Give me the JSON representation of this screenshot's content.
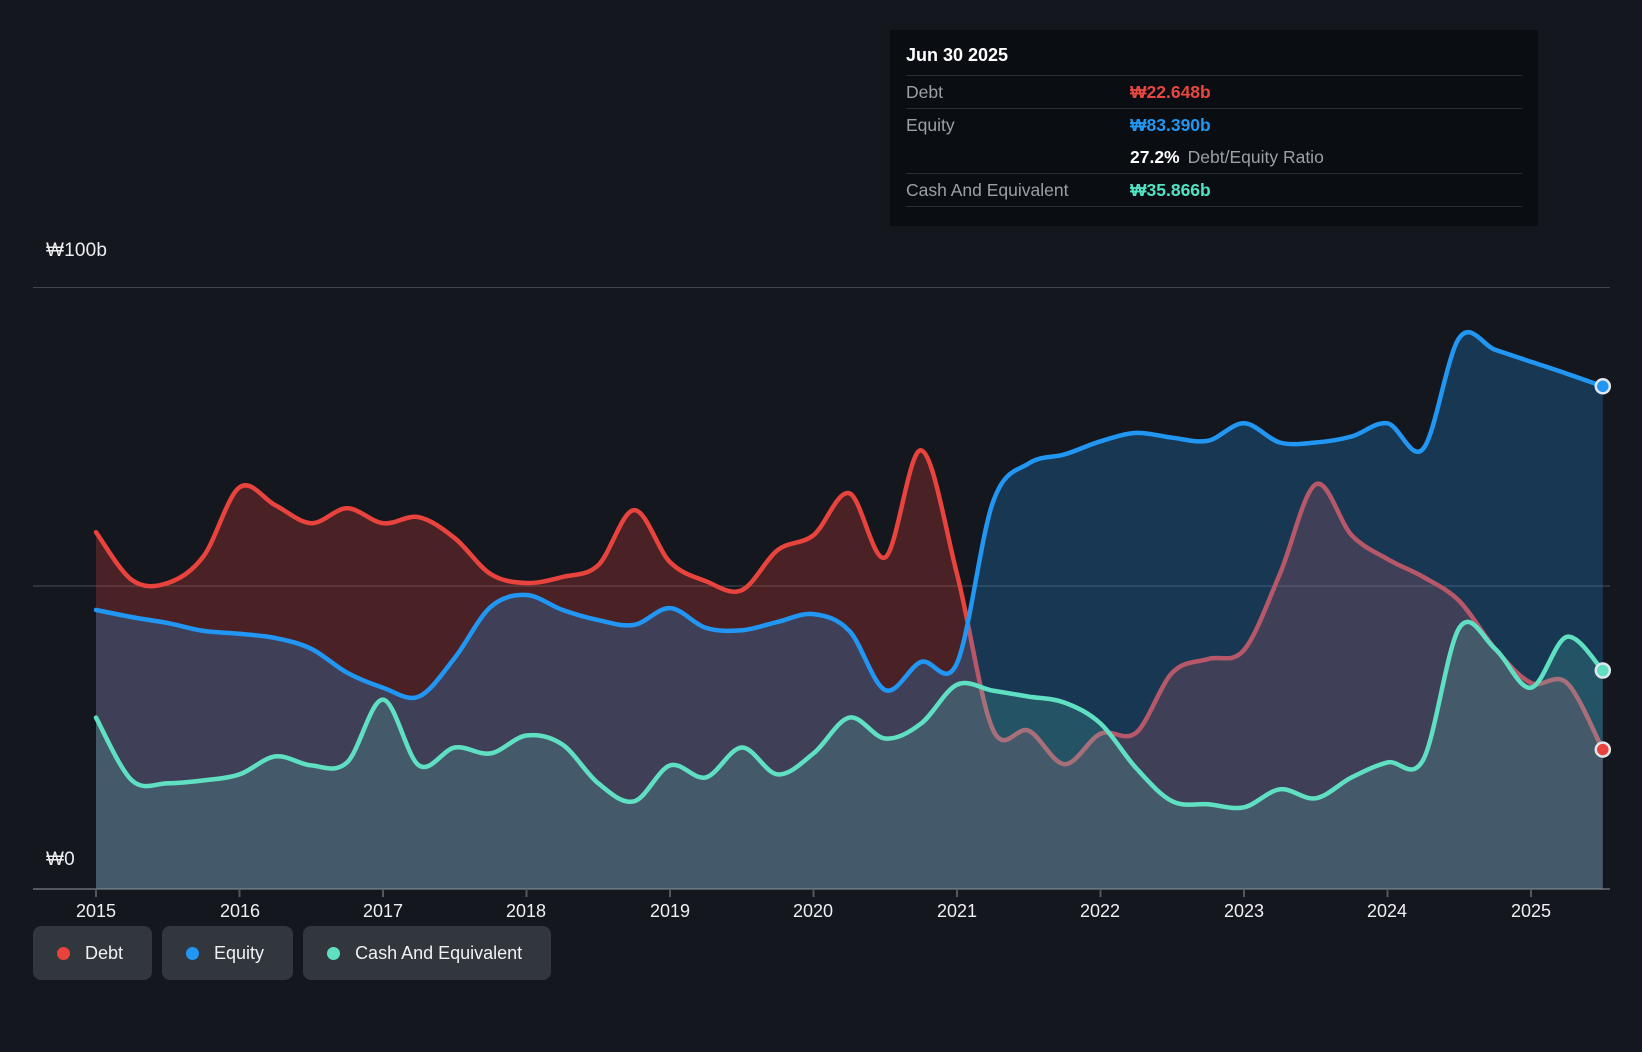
{
  "tooltip": {
    "date": "Jun 30 2025",
    "debt_label": "Debt",
    "debt_value": "₩22.648b",
    "equity_label": "Equity",
    "equity_value": "₩83.390b",
    "ratio_value": "27.2%",
    "ratio_label": "Debt/Equity Ratio",
    "cash_label": "Cash And Equivalent",
    "cash_value": "₩35.866b"
  },
  "axes": {
    "y_top": "₩100b",
    "y_zero": "₩0",
    "years": [
      "2015",
      "2016",
      "2017",
      "2018",
      "2019",
      "2020",
      "2021",
      "2022",
      "2023",
      "2024",
      "2025"
    ]
  },
  "legend": {
    "debt": "Debt",
    "equity": "Equity",
    "cash": "Cash And Equivalent"
  },
  "chart_data": {
    "type": "area",
    "title": "Debt to Equity History (KRW billions)",
    "unit": "₩ billions",
    "x_start": 2015.0,
    "x_step": 0.25,
    "x_end": 2025.5,
    "ylim": [
      0,
      100
    ],
    "y_gridlines": [
      0,
      50,
      100
    ],
    "y_tick_labels": {
      "0": "₩0",
      "100": "₩100b"
    },
    "x_tick_years": [
      2015,
      2016,
      2017,
      2018,
      2019,
      2020,
      2021,
      2022,
      2023,
      2024,
      2025
    ],
    "legend_position": "bottom-left",
    "series": [
      {
        "name": "Debt",
        "color": "#e8433d",
        "fill": "rgba(232,65,60,0.26)",
        "values": [
          59,
          51,
          50.5,
          55,
          66.5,
          63.5,
          60.5,
          63,
          60.5,
          61.5,
          58,
          52,
          50.5,
          51.5,
          53.5,
          62.7,
          54,
          50.8,
          49.3,
          56,
          58.5,
          65.5,
          54.8,
          72.7,
          52,
          26,
          25.8,
          20.2,
          25.3,
          25.5,
          35.5,
          37.8,
          39.3,
          52,
          67,
          58.5,
          54.5,
          51.5,
          47.5,
          39.5,
          33.8,
          33.8,
          22.648
        ]
      },
      {
        "name": "Equity",
        "color": "#2196f3",
        "fill": "rgba(33,150,243,0.25)",
        "values": [
          46,
          44.8,
          43.8,
          42.5,
          42,
          41.3,
          39.5,
          35.5,
          33,
          31.5,
          38,
          46.5,
          48.5,
          46,
          44.3,
          43.5,
          46.3,
          43,
          42.6,
          44,
          45.3,
          42.5,
          32.6,
          37.3,
          37.1,
          64,
          70.5,
          72,
          74.2,
          75.6,
          74.8,
          74.3,
          77.2,
          74,
          74,
          75,
          77.2,
          73,
          91.5,
          89.5,
          87.5,
          85.5,
          83.39
        ]
      },
      {
        "name": "Cash And Equivalent",
        "color": "#5fe0c2",
        "fill": "rgba(95,224,194,0.17)",
        "values": [
          28,
          17.5,
          17,
          17.5,
          18.5,
          21.5,
          20,
          20.5,
          31,
          20,
          23,
          22,
          25,
          23.5,
          17,
          14,
          20,
          18,
          23,
          18.5,
          22,
          28,
          24.5,
          27,
          33.5,
          32.5,
          31.5,
          30.5,
          27,
          19.5,
          14,
          13.5,
          13,
          16,
          14.5,
          18,
          20.5,
          21,
          43,
          39.5,
          33,
          41.5,
          35.866
        ]
      }
    ],
    "final_values": {
      "Debt": 22.648,
      "Equity": 83.39,
      "Cash And Equivalent": 35.866
    }
  }
}
